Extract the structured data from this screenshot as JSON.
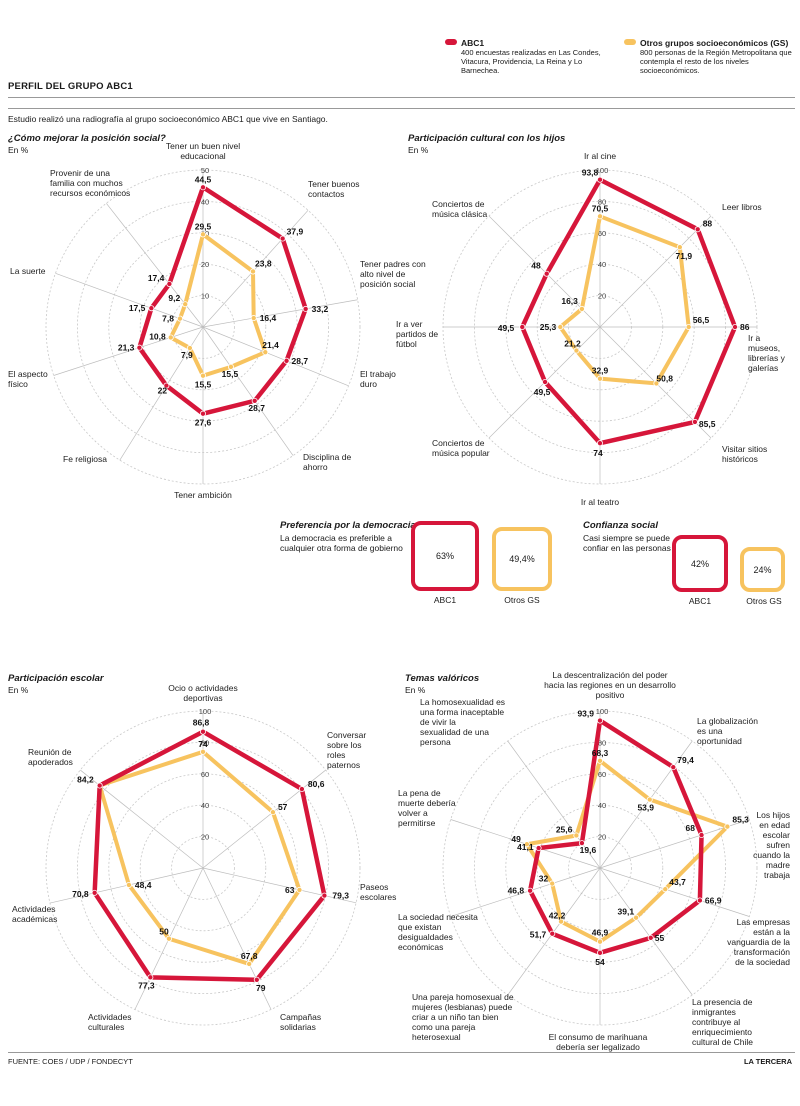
{
  "legend": {
    "abc1": {
      "title": "ABC1",
      "desc": "400 encuestas realizadas en Las Condes, Vitacura, Providencia, La Reina y Lo Barnechea.",
      "color": "#d6163a"
    },
    "gs": {
      "title": "Otros grupos socioeconómicos (GS)",
      "desc": "800 personas de la Región Metropolitana que contempla el resto de los niveles socioeconómicos.",
      "color": "#f7c35f"
    }
  },
  "header": {
    "title": "PERFIL DEL GRUPO ABC1",
    "intro": "Estudio realizó una radiografía al grupo socioeconómico ABC1 que vive en Santiago."
  },
  "chart_data": [
    {
      "type": "radar",
      "title": "¿Cómo mejorar la posición social?",
      "subtitle": "En %",
      "rmax": 50,
      "ticks": [
        10,
        20,
        30,
        40,
        50
      ],
      "categories": [
        "Tener un buen nivel educacional",
        "Tener buenos contactos",
        "Tener padres con alto nivel de posición social",
        "El trabajo duro",
        "Disciplina de ahorro",
        "Tener ambición",
        "Fe religiosa",
        "El aspecto físico",
        "La suerte",
        "Provenir de una familia con muchos recursos económicos"
      ],
      "series": [
        {
          "name": "ABC1",
          "values": [
            44.5,
            37.9,
            33.2,
            28.7,
            28.7,
            27.6,
            22,
            21.3,
            17.5,
            17.4
          ]
        },
        {
          "name": "Otros GS",
          "values": [
            29.5,
            23.8,
            16.4,
            21.4,
            15.5,
            15.5,
            7.9,
            10.8,
            7.8,
            9.2
          ]
        }
      ]
    },
    {
      "type": "radar",
      "title": "Participación cultural con los hijos",
      "subtitle": "En %",
      "rmax": 100,
      "ticks": [
        20,
        40,
        60,
        80,
        100
      ],
      "categories": [
        "Ir al cine",
        "Leer libros",
        "Ir a museos, librerías y galerías",
        "Visitar sitios históricos",
        "Ir al teatro",
        "Conciertos de música popular",
        "Ir a ver partidos de fútbol",
        "Conciertos de música clásica"
      ],
      "series": [
        {
          "name": "ABC1",
          "values": [
            93.8,
            88,
            86,
            85.5,
            74,
            49.5,
            49.5,
            48
          ]
        },
        {
          "name": "Otros GS",
          "values": [
            70.5,
            71.9,
            56.5,
            50.8,
            32.9,
            21.2,
            25.3,
            16.3
          ]
        }
      ]
    },
    {
      "type": "radar",
      "title": "Participación escolar",
      "subtitle": "En %",
      "rmax": 100,
      "ticks": [
        20,
        40,
        60,
        80,
        100
      ],
      "categories": [
        "Ocio o actividades deportivas",
        "Conversar sobre los roles paternos",
        "Paseos escolares",
        "Campañas solidarias",
        "Actividades culturales",
        "Actividades académicas",
        "Reunión de apoderados"
      ],
      "series": [
        {
          "name": "ABC1",
          "values": [
            86.8,
            80.6,
            79.3,
            79,
            77.3,
            70.8,
            84.2
          ]
        },
        {
          "name": "Otros GS",
          "values": [
            74,
            57,
            63,
            67.8,
            50,
            48.4,
            84.2
          ]
        }
      ]
    },
    {
      "type": "radar",
      "title": "Temas valóricos",
      "subtitle": "En %",
      "rmax": 100,
      "ticks": [
        20,
        40,
        60,
        80,
        100
      ],
      "categories": [
        "La descentralización del poder hacia las regiones en un desarrollo positivo",
        "La globalización es una oportunidad",
        "Los hijos en edad escolar sufren cuando la madre trabaja",
        "Las empresas están a la vanguardia de la transformación de la sociedad",
        "La presencia de inmigrantes contribuye al enriquecimiento cultural de Chile",
        "El consumo de marihuana debería ser legalizado",
        "Una pareja homosexual de mujeres (lesbianas) puede criar a un niño tan bien como una pareja heterosexual",
        "La sociedad necesita que existan desigualdades económicas",
        "La pena de muerte debería volver a permitirse",
        "La homosexualidad es una forma inaceptable de vivir la sexualidad de una persona"
      ],
      "series": [
        {
          "name": "ABC1",
          "values": [
            93.9,
            79.4,
            68,
            66.9,
            55,
            54,
            51.7,
            46.8,
            41.1,
            19.6
          ]
        },
        {
          "name": "Otros GS",
          "values": [
            68.3,
            53.9,
            85.3,
            43.7,
            39.1,
            46.9,
            42.2,
            32,
            49,
            25.6
          ]
        }
      ]
    }
  ],
  "democracia": {
    "title": "Preferencia por la democracia",
    "desc": "La democracia es preferible a cualquier otra forma de gobierno",
    "abc1_value": "63%",
    "gs_value": "49,4%",
    "abc1_label": "ABC1",
    "gs_label": "Otros GS"
  },
  "confianza": {
    "title": "Confianza social",
    "desc": "Casi siempre se puede confiar en las personas",
    "abc1_value": "42%",
    "gs_value": "24%",
    "abc1_label": "ABC1",
    "gs_label": "Otros GS"
  },
  "footer": {
    "source": "FUENTE: COES / UDP / FONDECYT",
    "brand": "LA TERCERA"
  }
}
